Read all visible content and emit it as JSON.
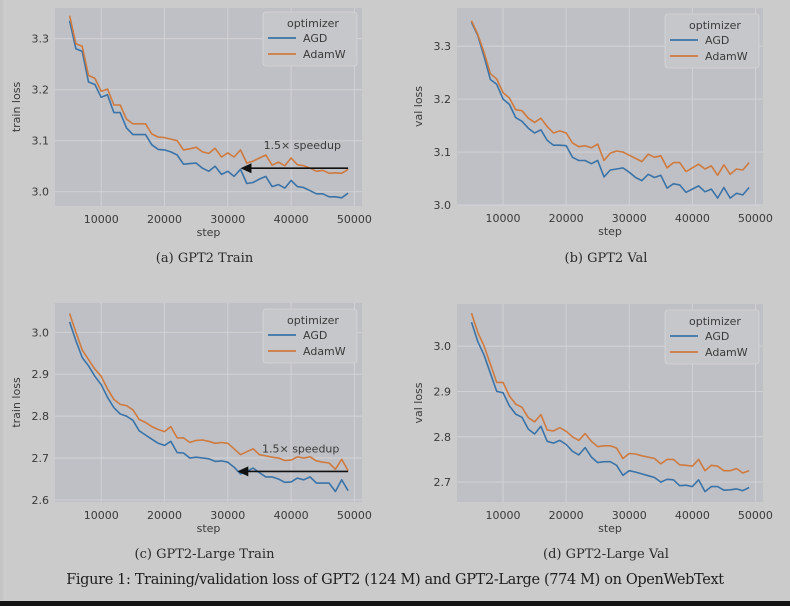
{
  "figure_caption": "Figure 1: Training/validation loss of GPT2 (124 M) and GPT2-Large (774 M) on OpenWebText",
  "colors": {
    "AGD": "#3a73a8",
    "AdamW": "#cf7a3e",
    "plot_bg": "#bfc0c5",
    "page_bg": "#cbcbcb",
    "grid": "#d2d3d7"
  },
  "chart_data": [
    {
      "id": "a",
      "type": "line",
      "subcaption": "(a) GPT2 Train",
      "xlabel": "step",
      "ylabel": "train loss",
      "xlim": [
        2700,
        51200
      ],
      "ylim": [
        2.972,
        3.36
      ],
      "xticks": [
        10000,
        20000,
        30000,
        40000,
        50000
      ],
      "xtick_labels": [
        "10000",
        "20000",
        "30000",
        "40000",
        "50000"
      ],
      "yticks": [
        3.0,
        3.1,
        3.2,
        3.3
      ],
      "ytick_labels": [
        "3.0",
        "3.1",
        "3.2",
        "3.3"
      ],
      "grid": true,
      "legend": {
        "title": "optimizer",
        "position": "top-right",
        "entries": [
          "AGD",
          "AdamW"
        ]
      },
      "annotation": {
        "text": "1.5× speedup",
        "arrow_from": [
          49000,
          3.046
        ],
        "arrow_to": [
          32000,
          3.046
        ]
      },
      "x": [
        5000,
        6000,
        7000,
        8000,
        9000,
        10000,
        11000,
        12000,
        13000,
        14000,
        15000,
        16000,
        17000,
        18000,
        19000,
        20000,
        21000,
        22000,
        23000,
        24000,
        25000,
        26000,
        27000,
        28000,
        29000,
        30000,
        31000,
        32000,
        33000,
        34000,
        35000,
        36000,
        37000,
        38000,
        39000,
        40000,
        41000,
        42000,
        43000,
        44000,
        45000,
        46000,
        47000,
        48000,
        49000
      ],
      "series": [
        {
          "name": "AGD",
          "values": [
            3.335,
            3.28,
            3.275,
            3.215,
            3.21,
            3.185,
            3.19,
            3.155,
            3.155,
            3.125,
            3.112,
            3.112,
            3.112,
            3.092,
            3.083,
            3.082,
            3.078,
            3.072,
            3.054,
            3.055,
            3.056,
            3.046,
            3.04,
            3.05,
            3.034,
            3.04,
            3.03,
            3.044,
            3.016,
            3.018,
            3.025,
            3.03,
            3.01,
            3.014,
            3.007,
            3.022,
            3.01,
            3.008,
            3.002,
            2.996,
            2.996,
            2.99,
            2.99,
            2.988,
            2.997
          ]
        },
        {
          "name": "AdamW",
          "values": [
            3.345,
            3.29,
            3.285,
            3.228,
            3.222,
            3.197,
            3.201,
            3.17,
            3.17,
            3.142,
            3.133,
            3.133,
            3.133,
            3.113,
            3.107,
            3.106,
            3.103,
            3.1,
            3.082,
            3.084,
            3.087,
            3.078,
            3.075,
            3.085,
            3.068,
            3.076,
            3.068,
            3.082,
            3.056,
            3.06,
            3.066,
            3.072,
            3.052,
            3.058,
            3.051,
            3.066,
            3.053,
            3.051,
            3.046,
            3.04,
            3.042,
            3.036,
            3.037,
            3.036,
            3.044
          ]
        }
      ]
    },
    {
      "id": "b",
      "type": "line",
      "subcaption": "(b) GPT2 Val",
      "xlabel": "step",
      "ylabel": "val loss",
      "xlim": [
        2700,
        51200
      ],
      "ylim": [
        3.0,
        3.372
      ],
      "xticks": [
        10000,
        20000,
        30000,
        40000,
        50000
      ],
      "xtick_labels": [
        "10000",
        "20000",
        "30000",
        "40000",
        "50000"
      ],
      "yticks": [
        3.0,
        3.1,
        3.2,
        3.3
      ],
      "ytick_labels": [
        "3.0",
        "3.1",
        "3.2",
        "3.3"
      ],
      "grid": true,
      "legend": {
        "title": "optimizer",
        "position": "top-right",
        "entries": [
          "AGD",
          "AdamW"
        ]
      },
      "x": [
        5000,
        6000,
        7000,
        8000,
        9000,
        10000,
        11000,
        12000,
        13000,
        14000,
        15000,
        16000,
        17000,
        18000,
        19000,
        20000,
        21000,
        22000,
        23000,
        24000,
        25000,
        26000,
        27000,
        28000,
        29000,
        30000,
        31000,
        32000,
        33000,
        34000,
        35000,
        36000,
        37000,
        38000,
        39000,
        40000,
        41000,
        42000,
        43000,
        44000,
        45000,
        46000,
        47000,
        48000,
        49000
      ],
      "series": [
        {
          "name": "AGD",
          "values": [
            3.345,
            3.32,
            3.28,
            3.237,
            3.228,
            3.2,
            3.19,
            3.165,
            3.158,
            3.145,
            3.136,
            3.142,
            3.122,
            3.113,
            3.113,
            3.112,
            3.09,
            3.084,
            3.084,
            3.078,
            3.084,
            3.053,
            3.066,
            3.068,
            3.07,
            3.062,
            3.052,
            3.046,
            3.058,
            3.052,
            3.056,
            3.032,
            3.04,
            3.038,
            3.024,
            3.03,
            3.036,
            3.025,
            3.03,
            3.013,
            3.033,
            3.013,
            3.022,
            3.019,
            3.033
          ]
        },
        {
          "name": "AdamW",
          "values": [
            3.348,
            3.322,
            3.288,
            3.248,
            3.238,
            3.212,
            3.202,
            3.18,
            3.178,
            3.164,
            3.156,
            3.164,
            3.148,
            3.136,
            3.14,
            3.136,
            3.117,
            3.11,
            3.112,
            3.108,
            3.115,
            3.084,
            3.098,
            3.102,
            3.1,
            3.094,
            3.088,
            3.082,
            3.096,
            3.09,
            3.093,
            3.07,
            3.08,
            3.08,
            3.063,
            3.07,
            3.077,
            3.068,
            3.074,
            3.056,
            3.076,
            3.058,
            3.068,
            3.066,
            3.08
          ]
        }
      ]
    },
    {
      "id": "c",
      "type": "line",
      "subcaption": "(c) GPT2-Large Train",
      "xlabel": "step",
      "ylabel": "train loss",
      "xlim": [
        2700,
        51200
      ],
      "ylim": [
        2.595,
        3.07
      ],
      "xticks": [
        10000,
        20000,
        30000,
        40000,
        50000
      ],
      "xtick_labels": [
        "10000",
        "20000",
        "30000",
        "40000",
        "50000"
      ],
      "yticks": [
        2.6,
        2.7,
        2.8,
        2.9,
        3.0
      ],
      "ytick_labels": [
        "2.6",
        "2.7",
        "2.8",
        "2.9",
        "3.0"
      ],
      "grid": true,
      "legend": {
        "title": "optimizer",
        "position": "top-right",
        "entries": [
          "AGD",
          "AdamW"
        ]
      },
      "annotation": {
        "text": "1.5× speedup",
        "arrow_from": [
          49000,
          2.668
        ],
        "arrow_to": [
          31500,
          2.668
        ]
      },
      "x": [
        5000,
        6000,
        7000,
        8000,
        9000,
        10000,
        11000,
        12000,
        13000,
        14000,
        15000,
        16000,
        17000,
        18000,
        19000,
        20000,
        21000,
        22000,
        23000,
        24000,
        25000,
        26000,
        27000,
        28000,
        29000,
        30000,
        31000,
        32000,
        33000,
        34000,
        35000,
        36000,
        37000,
        38000,
        39000,
        40000,
        41000,
        42000,
        43000,
        44000,
        45000,
        46000,
        47000,
        48000,
        49000
      ],
      "series": [
        {
          "name": "AGD",
          "values": [
            3.025,
            2.98,
            2.94,
            2.92,
            2.895,
            2.875,
            2.845,
            2.82,
            2.805,
            2.8,
            2.79,
            2.765,
            2.755,
            2.745,
            2.735,
            2.73,
            2.74,
            2.713,
            2.712,
            2.7,
            2.702,
            2.7,
            2.698,
            2.692,
            2.693,
            2.69,
            2.678,
            2.662,
            2.668,
            2.676,
            2.665,
            2.655,
            2.655,
            2.65,
            2.642,
            2.643,
            2.652,
            2.648,
            2.655,
            2.64,
            2.64,
            2.64,
            2.62,
            2.648,
            2.622
          ]
        },
        {
          "name": "AdamW",
          "values": [
            3.045,
            3.0,
            2.958,
            2.935,
            2.912,
            2.895,
            2.865,
            2.84,
            2.828,
            2.825,
            2.815,
            2.792,
            2.785,
            2.775,
            2.768,
            2.763,
            2.775,
            2.748,
            2.748,
            2.737,
            2.742,
            2.743,
            2.74,
            2.735,
            2.737,
            2.735,
            2.722,
            2.708,
            2.715,
            2.722,
            2.708,
            2.705,
            2.702,
            2.7,
            2.694,
            2.695,
            2.703,
            2.7,
            2.703,
            2.693,
            2.69,
            2.688,
            2.673,
            2.697,
            2.67
          ]
        }
      ]
    },
    {
      "id": "d",
      "type": "line",
      "subcaption": "(d) GPT2-Large Val",
      "xlabel": "step",
      "ylabel": "val loss",
      "xlim": [
        2700,
        51200
      ],
      "ylim": [
        2.656,
        3.093
      ],
      "xticks": [
        10000,
        20000,
        30000,
        40000,
        50000
      ],
      "xtick_labels": [
        "10000",
        "20000",
        "30000",
        "40000",
        "50000"
      ],
      "yticks": [
        2.7,
        2.8,
        2.9,
        3.0
      ],
      "ytick_labels": [
        "2.7",
        "2.8",
        "2.9",
        "3.0"
      ],
      "grid": true,
      "legend": {
        "title": "optimizer",
        "position": "top-right",
        "entries": [
          "AGD",
          "AdamW"
        ]
      },
      "x": [
        5000,
        6000,
        7000,
        8000,
        9000,
        10000,
        11000,
        12000,
        13000,
        14000,
        15000,
        16000,
        17000,
        18000,
        19000,
        20000,
        21000,
        22000,
        23000,
        24000,
        25000,
        26000,
        27000,
        28000,
        29000,
        30000,
        31000,
        32000,
        33000,
        34000,
        35000,
        36000,
        37000,
        38000,
        39000,
        40000,
        41000,
        42000,
        43000,
        44000,
        45000,
        46000,
        47000,
        48000,
        49000
      ],
      "series": [
        {
          "name": "AGD",
          "values": [
            3.053,
            3.01,
            2.98,
            2.94,
            2.9,
            2.897,
            2.868,
            2.85,
            2.843,
            2.817,
            2.806,
            2.823,
            2.79,
            2.786,
            2.792,
            2.783,
            2.768,
            2.76,
            2.776,
            2.755,
            2.743,
            2.745,
            2.745,
            2.737,
            2.715,
            2.725,
            2.722,
            2.718,
            2.714,
            2.71,
            2.7,
            2.706,
            2.705,
            2.692,
            2.693,
            2.69,
            2.705,
            2.679,
            2.69,
            2.69,
            2.682,
            2.683,
            2.685,
            2.681,
            2.688
          ]
        },
        {
          "name": "AdamW",
          "values": [
            3.073,
            3.03,
            3.0,
            2.96,
            2.92,
            2.92,
            2.89,
            2.872,
            2.865,
            2.842,
            2.833,
            2.849,
            2.815,
            2.813,
            2.82,
            2.812,
            2.8,
            2.792,
            2.807,
            2.79,
            2.778,
            2.78,
            2.78,
            2.775,
            2.752,
            2.763,
            2.762,
            2.758,
            2.755,
            2.752,
            2.74,
            2.75,
            2.75,
            2.738,
            2.737,
            2.735,
            2.75,
            2.725,
            2.737,
            2.735,
            2.725,
            2.725,
            2.73,
            2.72,
            2.725
          ]
        }
      ]
    }
  ]
}
